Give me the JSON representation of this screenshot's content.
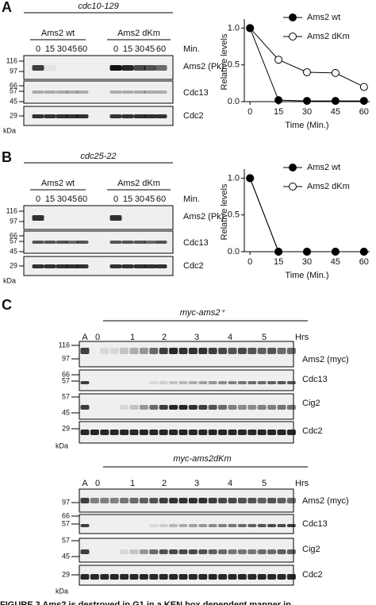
{
  "panel_a": {
    "letter": "A",
    "strain": "cdc10-129",
    "groups": [
      "Ams2 wt",
      "Ams2 dKm"
    ],
    "time_unit": "Min.",
    "lanes": [
      "0",
      "15",
      "30",
      "45",
      "60"
    ],
    "blots": [
      "Ams2 (Pk)",
      "Cdc13",
      "Cdc2"
    ],
    "markers": [
      "116",
      "97",
      "66",
      "57",
      "45",
      "29"
    ],
    "marker_unit": "kDa"
  },
  "panel_b": {
    "letter": "B",
    "strain": "cdc25-22",
    "groups": [
      "Ams2 wt",
      "Ams2 dKm"
    ],
    "time_unit": "Min.",
    "lanes": [
      "0",
      "15",
      "30",
      "45",
      "60"
    ],
    "blots": [
      "Ams2 (Pk)",
      "Cdc13",
      "Cdc2"
    ],
    "markers": [
      "116",
      "97",
      "66",
      "57",
      "45",
      "29"
    ],
    "marker_unit": "kDa"
  },
  "chart_data": [
    {
      "type": "line",
      "x_label": "Time (Min.)",
      "y_label": "Relative levels",
      "x": [
        0,
        15,
        30,
        45,
        60
      ],
      "series": [
        {
          "name": "Ams2 wt",
          "color": "#000000",
          "fill": "#000000",
          "values": [
            1.0,
            0.02,
            0.01,
            0.01,
            0.01
          ]
        },
        {
          "name": "Ams2 dKm",
          "color": "#000000",
          "fill": "#ffffff",
          "values": [
            1.0,
            0.57,
            0.4,
            0.39,
            0.2
          ]
        }
      ],
      "xlim": [
        -3,
        63
      ],
      "ylim": [
        0,
        1.08
      ],
      "xticks": [
        0,
        15,
        30,
        45,
        60
      ],
      "yticks": [
        {
          "value": 0,
          "label": "0.0"
        },
        0.5,
        {
          "value": 1,
          "label": "1.0"
        }
      ]
    },
    {
      "type": "line",
      "x_label": "Time (Min.)",
      "y_label": "Relative levels",
      "x": [
        0,
        15,
        30,
        45,
        60
      ],
      "series": [
        {
          "name": "Ams2 wt",
          "color": "#000000",
          "fill": "#000000",
          "values": [
            1.0,
            0.0,
            0.0,
            0.0,
            0.0
          ]
        },
        {
          "name": "Ams2 dKm",
          "color": "#000000",
          "fill": "#ffffff",
          "values": [
            1.0,
            0.0,
            0.0,
            0.0,
            0.0
          ]
        }
      ],
      "xlim": [
        -3,
        63
      ],
      "ylim": [
        0,
        1.08
      ],
      "xticks": [
        0,
        15,
        30,
        45,
        60
      ],
      "yticks": [
        {
          "value": 0,
          "label": "0.0"
        },
        0.5,
        {
          "value": 1,
          "label": "1.0"
        }
      ]
    }
  ],
  "panel_c": {
    "letter": "C",
    "time_unit": "Hrs",
    "lane_labels": [
      "A",
      "0",
      "1",
      "2",
      "3",
      "4",
      "5"
    ],
    "marker_unit": "kDa",
    "sections": [
      {
        "genotype": "myc-ams2⁺",
        "blots": [
          "Ams2 (myc)",
          "Cdc13",
          "Cig2",
          "Cdc2"
        ],
        "markers": [
          "116",
          "97",
          "66",
          "57",
          "57",
          "45",
          "29"
        ]
      },
      {
        "genotype": "myc-ams2dKm",
        "blots": [
          "Ams2 (myc)",
          "Cdc13",
          "Cig2",
          "Cdc2"
        ],
        "markers": [
          "97",
          "66",
          "57",
          "57",
          "45",
          "29"
        ]
      }
    ]
  },
  "caption": "FIGURE 3  Ams2 is destroyed in G1 in a KEN box dependent manner in"
}
